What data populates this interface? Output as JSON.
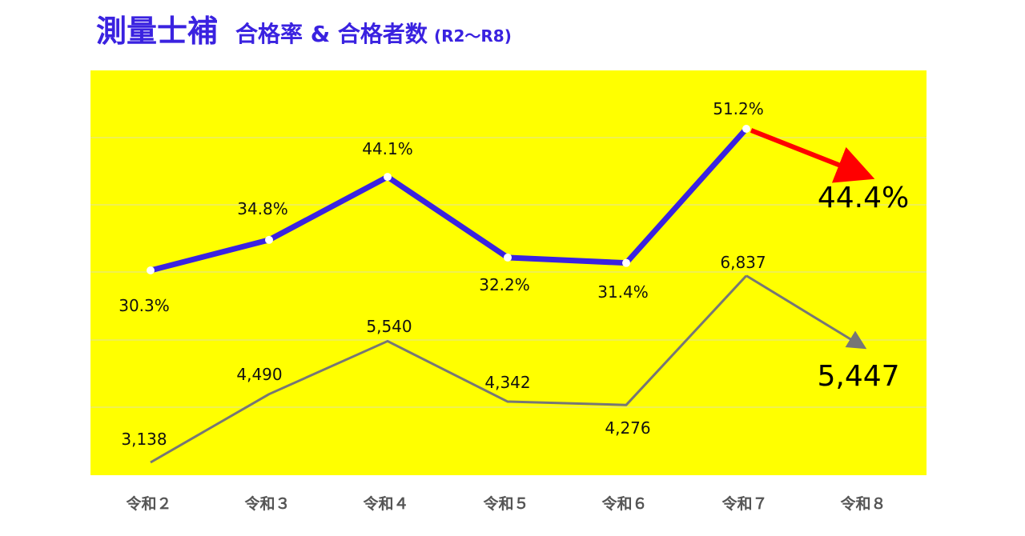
{
  "title": {
    "main": "測量士補",
    "sub": "合格率 & 合格者数",
    "range": "(R2〜R8)"
  },
  "colors": {
    "plot_bg": "#ffff00",
    "rate_line": "#3a22e0",
    "count_line": "#767676",
    "forecast_arrow": "#ff0000"
  },
  "chart_data": {
    "type": "line",
    "categories": [
      "令和２",
      "令和３",
      "令和４",
      "令和５",
      "令和６",
      "令和７",
      "令和８"
    ],
    "series": [
      {
        "values": [
          30.3,
          34.8,
          44.1,
          32.2,
          31.4,
          51.2,
          44.4
        ],
        "labels": [
          "30.3%",
          "34.8%",
          "44.1%",
          "32.2%",
          "31.4%",
          "51.2%",
          "44.4%"
        ]
      },
      {
        "values": [
          3138,
          4490,
          5540,
          4342,
          4276,
          6837,
          5447
        ],
        "labels": [
          "3,138",
          "4,490",
          "5,540",
          "4,342",
          "4,276",
          "6,837",
          "5,447"
        ]
      }
    ],
    "grid": true,
    "legend": "none"
  }
}
